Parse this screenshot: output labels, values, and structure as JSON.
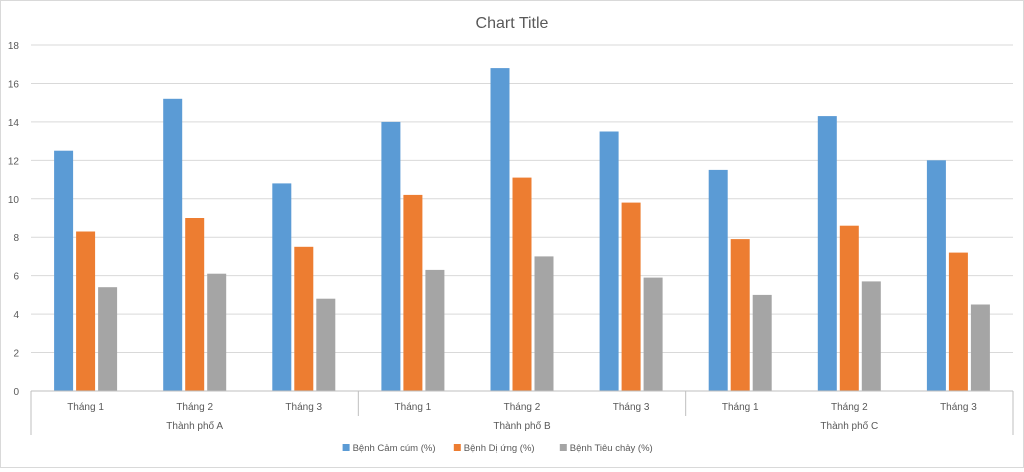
{
  "chart_data": {
    "type": "bar",
    "title": "Chart Title",
    "xlabel": "",
    "ylabel": "",
    "ylim": [
      0,
      18
    ],
    "yticks": [
      "0",
      "2",
      "4",
      "6",
      "8",
      "10",
      "12",
      "14",
      "16",
      "18"
    ],
    "grid": true,
    "legend_position": "bottom",
    "groups": [
      {
        "name": "Thành phố A",
        "categories": [
          "Tháng 1",
          "Tháng 2",
          "Tháng 3"
        ]
      },
      {
        "name": "Thành phố B",
        "categories": [
          "Tháng 1",
          "Tháng 2",
          "Tháng 3"
        ]
      },
      {
        "name": "Thành phố C",
        "categories": [
          "Tháng 1",
          "Tháng 2",
          "Tháng 3"
        ]
      }
    ],
    "categories": [
      "Tháng 1",
      "Tháng 2",
      "Tháng 3",
      "Tháng 1",
      "Tháng 2",
      "Tháng 3",
      "Tháng 1",
      "Tháng 2",
      "Tháng 3"
    ],
    "series": [
      {
        "name": "Bệnh Cảm cúm (%)",
        "color": "#5b9bd5",
        "values": [
          12.5,
          15.2,
          10.8,
          14.0,
          16.8,
          13.5,
          11.5,
          14.3,
          12.0
        ]
      },
      {
        "name": "Bệnh Dị ứng (%)",
        "color": "#ed7d31",
        "values": [
          8.3,
          9.0,
          7.5,
          10.2,
          11.1,
          9.8,
          7.9,
          8.6,
          7.2
        ]
      },
      {
        "name": "Bệnh Tiêu chảy (%)",
        "color": "#a5a5a5",
        "values": [
          5.4,
          6.1,
          4.8,
          6.3,
          7.0,
          5.9,
          5.0,
          5.7,
          4.5
        ]
      }
    ]
  }
}
